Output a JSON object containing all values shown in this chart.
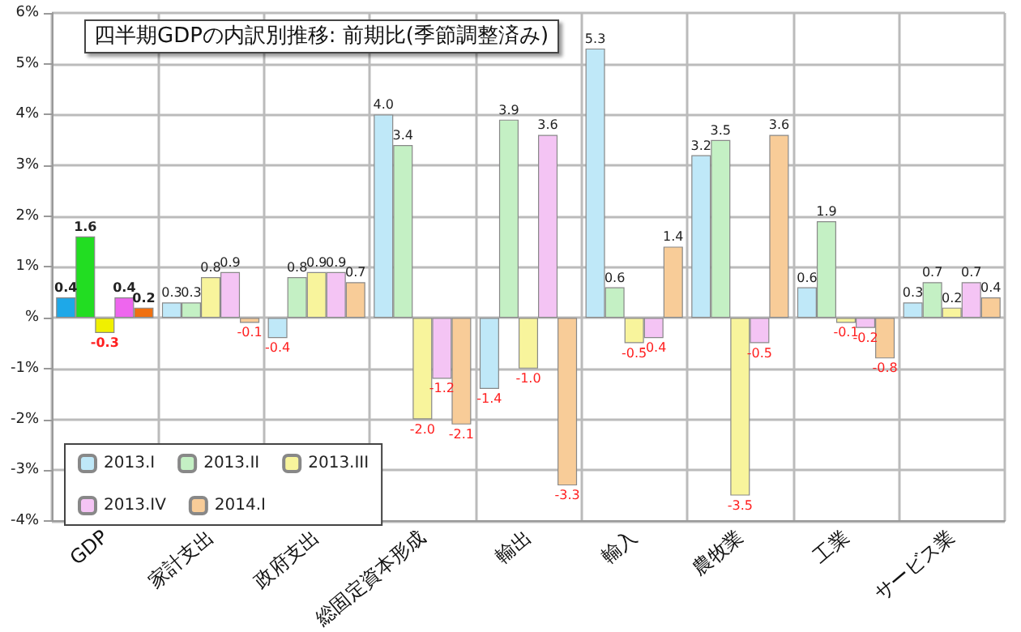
{
  "chart_data": {
    "type": "bar",
    "title": "四半期GDPの内訳別推移: 前期比(季節調整済み)",
    "categories": [
      "GDP",
      "家計支出",
      "政府支出",
      "総固定資本形成",
      "輸出",
      "輸入",
      "農牧業",
      "工業",
      "サービス業"
    ],
    "series": [
      {
        "name": "2013.I",
        "color": "#bfe8f8",
        "colors": [
          "#1ea8e8",
          "#bfe8f8",
          "#bfe8f8",
          "#bfe8f8",
          "#bfe8f8",
          "#bfe8f8",
          "#bfe8f8",
          "#bfe8f8",
          "#bfe8f8"
        ],
        "values": [
          0.4,
          0.3,
          -0.4,
          4.0,
          -1.4,
          5.3,
          3.2,
          0.6,
          0.3
        ],
        "value_labels": [
          "0.4",
          "0.3",
          "-0.4",
          "4.0",
          "-1.4",
          "5.3",
          "3.2",
          "0.6",
          "0.3"
        ]
      },
      {
        "name": "2013.II",
        "color": "#c4f0c4",
        "colors": [
          "#22dd22",
          "#c4f0c4",
          "#c4f0c4",
          "#c4f0c4",
          "#c4f0c4",
          "#c4f0c4",
          "#c4f0c4",
          "#c4f0c4",
          "#c4f0c4"
        ],
        "values": [
          1.6,
          0.3,
          0.8,
          3.4,
          3.9,
          0.6,
          3.5,
          1.9,
          0.7
        ],
        "value_labels": [
          "1.6",
          "0.3",
          "0.8",
          "3.4",
          "3.9",
          "0.6",
          "3.5",
          "1.9",
          "0.7"
        ]
      },
      {
        "name": "2013.III",
        "color": "#f8f49c",
        "colors": [
          "#f0f000",
          "#f8f49c",
          "#f8f49c",
          "#f8f49c",
          "#f8f49c",
          "#f8f49c",
          "#f8f49c",
          "#f8f49c",
          "#f8f49c"
        ],
        "values": [
          -0.3,
          0.8,
          0.9,
          -2.0,
          -1.0,
          -0.5,
          -3.5,
          -0.1,
          0.2
        ],
        "value_labels": [
          "-0.3",
          "0.8",
          "0.9",
          "-2.0",
          "-1.0",
          "-0.5",
          "-3.5",
          "-0.1",
          "0.2"
        ]
      },
      {
        "name": "2013.IV",
        "color": "#f4c4f4",
        "colors": [
          "#ee66ee",
          "#f4c4f4",
          "#f4c4f4",
          "#f4c4f4",
          "#f4c4f4",
          "#f4c4f4",
          "#f4c4f4",
          "#f4c4f4",
          "#f4c4f4"
        ],
        "values": [
          0.4,
          0.9,
          0.9,
          -1.2,
          3.6,
          -0.4,
          -0.5,
          -0.2,
          0.7
        ],
        "value_labels": [
          "0.4",
          "0.9",
          "0.9",
          "-1.2",
          "3.6",
          "-0.4",
          "-0.5",
          "-0.2",
          "0.7"
        ]
      },
      {
        "name": "2014.I",
        "color": "#f8cc98",
        "colors": [
          "#f07010",
          "#f8cc98",
          "#f8cc98",
          "#f8cc98",
          "#f8cc98",
          "#f8cc98",
          "#f8cc98",
          "#f8cc98",
          "#f8cc98"
        ],
        "values": [
          0.2,
          -0.1,
          0.7,
          -2.1,
          -3.3,
          1.4,
          3.6,
          -0.8,
          0.4
        ],
        "value_labels": [
          "0.2",
          "-0.1",
          "0.7",
          "-2.1",
          "-3.3",
          "1.4",
          "3.6",
          "-0.8",
          "0.4"
        ]
      }
    ],
    "ylim": [
      -4,
      6
    ],
    "yticks": [
      {
        "value": -4,
        "label": "-4%"
      },
      {
        "value": -3,
        "label": "-3%"
      },
      {
        "value": -2,
        "label": "-2%"
      },
      {
        "value": -1,
        "label": "-1%"
      },
      {
        "value": 0,
        "label": "%"
      },
      {
        "value": 1,
        "label": "1%"
      },
      {
        "value": 2,
        "label": "2%"
      },
      {
        "value": 3,
        "label": "3%"
      },
      {
        "value": 4,
        "label": "4%"
      },
      {
        "value": 5,
        "label": "5%"
      },
      {
        "value": 6,
        "label": "6%"
      }
    ],
    "grid": true,
    "legend": "bottom left"
  }
}
